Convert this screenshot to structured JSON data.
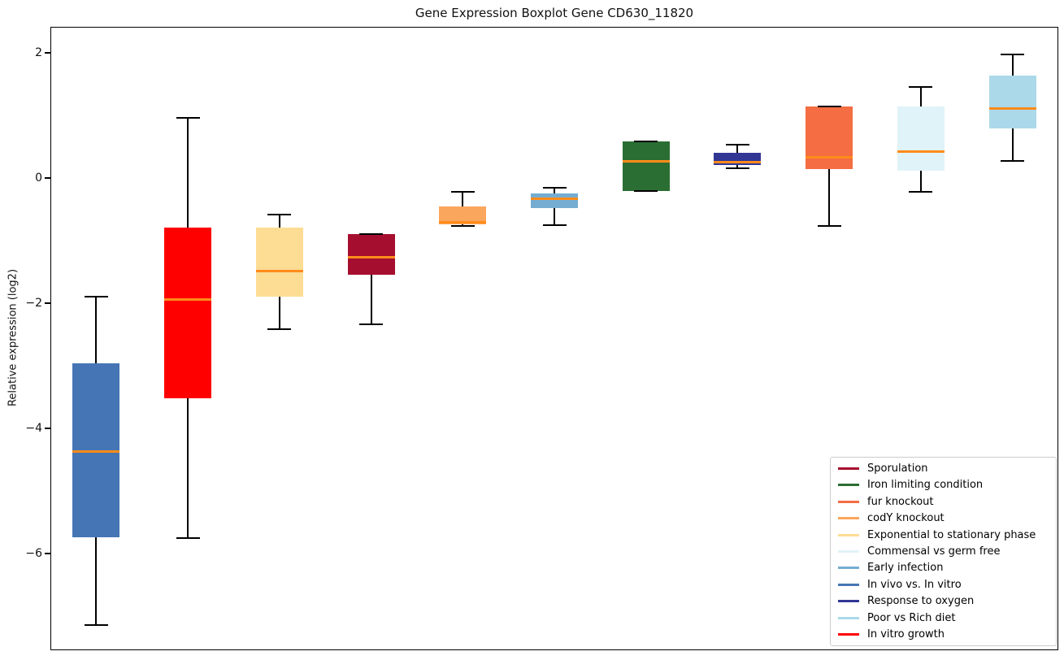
{
  "chart_data": {
    "type": "boxplot",
    "title": "Gene Expression Boxplot Gene CD630_11820",
    "ylabel": "Relative expression (log2)",
    "xlabel": "",
    "ylim": [
      -7.55,
      2.42
    ],
    "yticks": [
      {
        "label": "2",
        "value": 2
      },
      {
        "label": "0",
        "value": 0
      },
      {
        "label": "−2",
        "value": -2
      },
      {
        "label": "−4",
        "value": -4
      },
      {
        "label": "−6",
        "value": -6
      }
    ],
    "grid": false,
    "legend_position": "lower right",
    "colors": {
      "median": "#FF8C1A",
      "whisker": "#000000",
      "spine": "#000000",
      "background": "#FFFFFF"
    },
    "series": [
      {
        "name": "In vivo vs. In vitro",
        "color": "#4575B4",
        "whislo": -7.15,
        "q1": -5.74,
        "med": -4.37,
        "q3": -2.96,
        "whishi": -1.89
      },
      {
        "name": "In vitro growth",
        "color": "#FF0000",
        "whislo": -5.75,
        "q1": -3.52,
        "med": -1.94,
        "q3": -0.79,
        "whishi": 0.96
      },
      {
        "name": "Exponential to stationary phase",
        "color": "#FDDC94",
        "whislo": -2.41,
        "q1": -1.9,
        "med": -1.48,
        "q3": -0.79,
        "whishi": -0.58
      },
      {
        "name": "Sporulation",
        "color": "#A50E2E",
        "whislo": -2.34,
        "q1": -1.55,
        "med": -1.27,
        "q3": -0.9,
        "whishi": -0.9
      },
      {
        "name": "codY knockout",
        "color": "#FBA65D",
        "whislo": -0.77,
        "q1": -0.74,
        "med": -0.7,
        "q3": -0.45,
        "whishi": -0.22
      },
      {
        "name": "Early infection",
        "color": "#74ADD1",
        "whislo": -0.75,
        "q1": -0.48,
        "med": -0.33,
        "q3": -0.24,
        "whishi": -0.15
      },
      {
        "name": "Iron limiting condition",
        "color": "#2B6E33",
        "whislo": -0.2,
        "q1": -0.2,
        "med": 0.27,
        "q3": 0.59,
        "whishi": 0.59
      },
      {
        "name": "Response to oxygen",
        "color": "#313695",
        "whislo": 0.16,
        "q1": 0.21,
        "med": 0.26,
        "q3": 0.41,
        "whishi": 0.54
      },
      {
        "name": "fur knockout",
        "color": "#F46D43",
        "whislo": -0.76,
        "q1": 0.15,
        "med": 0.33,
        "q3": 1.14,
        "whishi": 1.14
      },
      {
        "name": "Commensal vs germ free",
        "color": "#E0F3F8",
        "whislo": -0.22,
        "q1": 0.12,
        "med": 0.42,
        "q3": 1.15,
        "whishi": 1.46
      },
      {
        "name": "Poor vs Rich diet",
        "color": "#ABD9E9",
        "whislo": 0.27,
        "q1": 0.79,
        "med": 1.12,
        "q3": 1.64,
        "whishi": 1.98
      }
    ],
    "legend": [
      {
        "label": "Sporulation",
        "color": "#A50E2E"
      },
      {
        "label": "Iron limiting condition",
        "color": "#2B6E33"
      },
      {
        "label": "fur knockout",
        "color": "#F46D43"
      },
      {
        "label": "codY knockout",
        "color": "#FBA65D"
      },
      {
        "label": "Exponential to stationary phase",
        "color": "#FDDC94"
      },
      {
        "label": "Commensal vs germ free",
        "color": "#E0F3F8"
      },
      {
        "label": "Early infection",
        "color": "#74ADD1"
      },
      {
        "label": "In vivo vs. In vitro",
        "color": "#4575B4"
      },
      {
        "label": "Response to oxygen",
        "color": "#313695"
      },
      {
        "label": "Poor vs Rich diet",
        "color": "#ABD9E9"
      },
      {
        "label": "In vitro growth",
        "color": "#FF0000"
      }
    ]
  }
}
